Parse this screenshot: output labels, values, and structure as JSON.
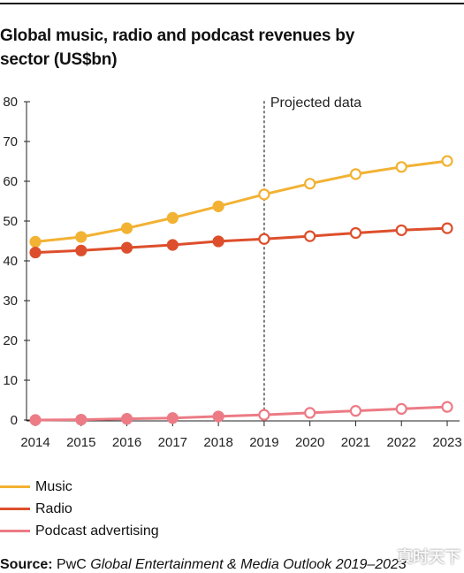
{
  "title": "Global music, radio and podcast revenues by sector (US$bn)",
  "source_label": "Source:",
  "source_publisher": "PwC",
  "source_title": "Global Entertainment & Media Outlook 2019–2023",
  "watermark": "真时天下",
  "colors": {
    "music": "#f2b233",
    "radio": "#dd4f2c",
    "podcast": "#ec7b85",
    "axis": "#222222",
    "projection_line": "#777777"
  },
  "chart_data": {
    "type": "line",
    "title": "Global music, radio and podcast revenues by sector (US$bn)",
    "xlabel": "",
    "ylabel": "",
    "x": [
      2014,
      2015,
      2016,
      2017,
      2018,
      2019,
      2020,
      2021,
      2022,
      2023
    ],
    "y_ticks": [
      0,
      10,
      20,
      30,
      40,
      50,
      60,
      70,
      80
    ],
    "ylim": [
      0,
      80
    ],
    "grid": false,
    "legend_position": "bottom-left",
    "annotation": {
      "label": "Projected data",
      "x": 2019
    },
    "projected_from": 2019,
    "series": [
      {
        "name": "Music",
        "key": "music",
        "values": [
          44.8,
          46.0,
          48.2,
          50.8,
          53.7,
          56.7,
          59.4,
          61.8,
          63.6,
          65.1
        ]
      },
      {
        "name": "Radio",
        "key": "radio",
        "values": [
          42.1,
          42.6,
          43.3,
          44.0,
          44.9,
          45.5,
          46.2,
          47.0,
          47.7,
          48.2
        ]
      },
      {
        "name": "Podcast advertising",
        "key": "podcast",
        "values": [
          0.0,
          0.1,
          0.3,
          0.5,
          0.9,
          1.3,
          1.8,
          2.3,
          2.8,
          3.3
        ]
      }
    ]
  }
}
